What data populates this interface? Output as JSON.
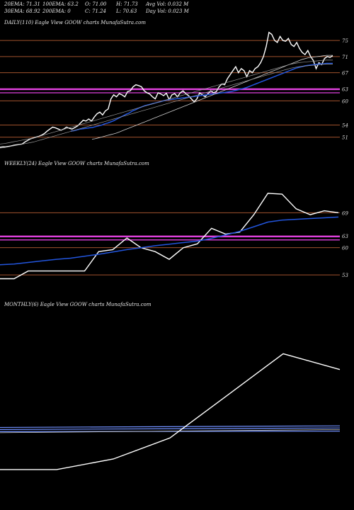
{
  "header": {
    "row1": [
      "20EMA: 71.31",
      "100EMA: 63.2",
      "O: 71.00",
      "H: 71.73",
      "Avg Vol: 0.032  M"
    ],
    "row2": [
      "30EMA: 68.92",
      "200EMA: 0",
      "C: 71.24",
      "L: 70.63",
      "Day Vol: 0.023  M"
    ]
  },
  "colors": {
    "background": "#000000",
    "price": "#ffffff",
    "ema_short": "#2255dd",
    "ema_long": "#cccccc",
    "level_line": "#a0522d",
    "magenta": "#e040e0",
    "blue_band": "#7090ff"
  },
  "chart_data": [
    {
      "type": "line",
      "title": "DAILY(110) Eagle   View  GOOW charts MunafaSutra.com",
      "yticks": [
        75,
        71,
        67,
        63,
        60,
        54,
        51
      ],
      "ylim": [
        49,
        78
      ],
      "grid": false,
      "series": [
        {
          "values": [
            48.5,
            48.6,
            48.6,
            48.7,
            48.8,
            49.0,
            49.1,
            49.2,
            49.3,
            49.8,
            50.2,
            50.6,
            50.8,
            51.0,
            51.2,
            51.5,
            51.9,
            52.5,
            53.0,
            53.5,
            53.3,
            53.0,
            52.7,
            53.0,
            53.5,
            53.2,
            53.0,
            53.4,
            53.8,
            54.5,
            55.2,
            55.0,
            55.5,
            55.0,
            56.0,
            56.8,
            57.2,
            56.5,
            57.5,
            58.0,
            60.5,
            61.5,
            61.0,
            61.8,
            61.5,
            61.0,
            62.3,
            62.5,
            63.5,
            64.0,
            63.8,
            63.5,
            62.5,
            62.0,
            61.7,
            61.0,
            60.5,
            62.0,
            61.7,
            61.3,
            61.9,
            60.3,
            61.5,
            61.8,
            61.0,
            62.0,
            62.5,
            61.8,
            61.3,
            60.5,
            59.8,
            60.5,
            62.0,
            61.5,
            61.0,
            61.8,
            62.5,
            62.0,
            62.3,
            63.5,
            64.2,
            64.0,
            65.5,
            66.5,
            67.5,
            68.5,
            67.0,
            68.0,
            67.5,
            66.0,
            67.5,
            67.0,
            68.0,
            68.5,
            69.5,
            71.0,
            73.5,
            77.0,
            76.5,
            75.0,
            74.5,
            76.0,
            75.0,
            74.8,
            75.5,
            74.0,
            73.5,
            74.5,
            73.0,
            72.0,
            71.5,
            72.5,
            71.0,
            70.0,
            68.0,
            69.5,
            69.0,
            70.5,
            71.0,
            70.8,
            71.2
          ]
        },
        {
          "values": [
            52.5,
            52.6,
            52.8,
            53.0,
            53.1,
            53.2,
            53.3,
            53.4,
            53.6,
            53.8,
            54.0,
            54.3,
            54.5,
            54.8,
            55.1,
            55.5,
            55.9,
            56.3,
            56.7,
            57.0,
            57.5,
            57.8,
            58.2,
            58.5,
            58.8,
            59.0,
            59.2,
            59.4,
            59.6,
            59.8,
            60.0,
            60.2,
            60.3,
            60.4,
            60.5,
            60.6,
            60.7,
            60.8,
            60.9,
            61.0,
            61.1,
            61.2,
            61.3,
            61.4,
            61.5,
            61.6,
            61.7,
            61.8,
            61.9,
            62.0,
            62.1,
            62.2,
            62.3,
            62.5,
            62.7,
            62.9,
            63.1,
            63.3,
            63.6,
            63.9,
            64.2,
            64.5,
            64.8,
            65.1,
            65.4,
            65.7,
            66.0,
            66.3,
            66.6,
            66.9,
            67.2,
            67.5,
            67.8,
            68.1,
            68.3,
            68.5,
            68.7,
            68.8,
            68.9,
            69.0,
            69.1,
            69.2,
            69.2,
            69.3,
            69.3,
            69.3
          ]
        },
        {
          "values": [
            50.5,
            50.6,
            50.8,
            51.0,
            51.2,
            51.4,
            51.6,
            51.8,
            52.0,
            52.3,
            52.6,
            52.9,
            53.2,
            53.5,
            53.8,
            54.1,
            54.4,
            54.7,
            55.0,
            55.3,
            55.6,
            55.9,
            56.2,
            56.5,
            56.8,
            57.1,
            57.4,
            57.7,
            58.0,
            58.3,
            58.6,
            58.9,
            59.2,
            59.5,
            59.8,
            60.1,
            60.4,
            60.7,
            61.0,
            61.3,
            61.6,
            61.9,
            62.2,
            62.5,
            62.8,
            63.1,
            63.4,
            63.7,
            64.0,
            64.3,
            64.6,
            64.9,
            65.2,
            65.5,
            65.8,
            66.1,
            66.4,
            66.7,
            67.0,
            67.3,
            67.6,
            67.9,
            68.2,
            68.5,
            68.8,
            69.1,
            69.4,
            69.7,
            70.0,
            70.3,
            70.5,
            70.7,
            70.8,
            70.9,
            71.0,
            71.1,
            71.2,
            71.3,
            71.3,
            71.3
          ]
        }
      ]
    },
    {
      "type": "line",
      "title": "WEEKLY(24) Eagle   View  GOOW charts MunafaSutra.com",
      "yticks": [
        69,
        63,
        60,
        53
      ],
      "ylim": [
        49,
        80
      ],
      "grid": false,
      "series": [
        {
          "values": [
            52,
            52,
            54,
            54,
            54,
            54,
            54,
            59,
            59.5,
            62.5,
            60,
            59,
            57,
            60,
            61,
            65,
            63.5,
            64,
            68.5,
            74,
            73.8,
            70,
            68.5,
            69.5,
            69
          ]
        },
        {
          "values": [
            55.6,
            55.8,
            56.2,
            56.6,
            57.0,
            57.3,
            57.8,
            58.3,
            58.9,
            59.5,
            60.0,
            60.5,
            60.9,
            61.3,
            61.7,
            62.4,
            63.3,
            64.2,
            65.4,
            66.6,
            67.1,
            67.3,
            67.5,
            67.7,
            67.9
          ]
        }
      ]
    },
    {
      "type": "line",
      "title": "MONTHLY(6) Eagle   View  GOOW charts MunafaSutra.com",
      "yticks": [],
      "ylim": [
        45,
        80
      ],
      "grid": false,
      "series": [
        {
          "values": [
            50,
            50,
            52,
            56,
            64,
            72,
            69
          ]
        }
      ]
    }
  ]
}
